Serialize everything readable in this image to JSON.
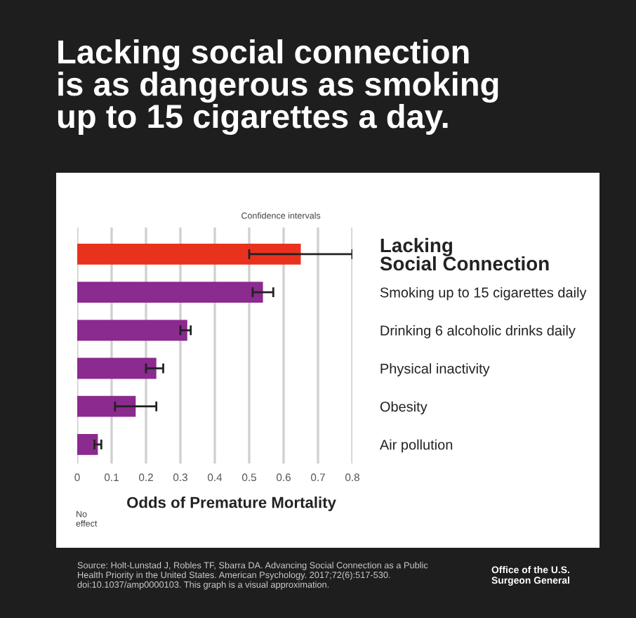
{
  "chart_data": {
    "type": "bar",
    "orientation": "horizontal",
    "title": "Lacking social connection\nis as dangerous as smoking\nup to 15 cigarettes a day.",
    "xlabel": "Odds of Premature Mortality",
    "categories": [
      "Lacking\nSocial Connection",
      "Smoking up to 15 cigarettes daily",
      "Drinking 6 alcoholic drinks daily",
      "Physical inactivity",
      "Obesity",
      "Air pollution"
    ],
    "values": [
      0.65,
      0.54,
      0.32,
      0.23,
      0.17,
      0.06
    ],
    "colors": [
      "#e8321e",
      "#8b2a8f",
      "#8b2a8f",
      "#8b2a8f",
      "#8b2a8f",
      "#8b2a8f"
    ],
    "errors": [
      [
        0.5,
        0.8
      ],
      [
        0.51,
        0.57
      ],
      [
        0.3,
        0.33
      ],
      [
        0.2,
        0.25
      ],
      [
        0.11,
        0.23
      ],
      [
        0.05,
        0.07
      ]
    ],
    "xlim": [
      0,
      0.8
    ],
    "xticks": [
      0,
      0.1,
      0.2,
      0.3,
      0.4,
      0.5,
      0.6,
      0.7,
      0.8
    ],
    "grid": "x",
    "legend": false,
    "annotations": [
      "Confidence intervals",
      "No effect",
      "Source: Holt-Lunstad J, Robles TF, Sbarra DA. Advancing Social Connection as a Public Health Priority in the United States. American Psychology. 2017;72(6):517-530. doi:10.1037/amp0000103. This graph is a visual approximation.",
      "Office of the U.S. Surgeon General"
    ]
  }
}
